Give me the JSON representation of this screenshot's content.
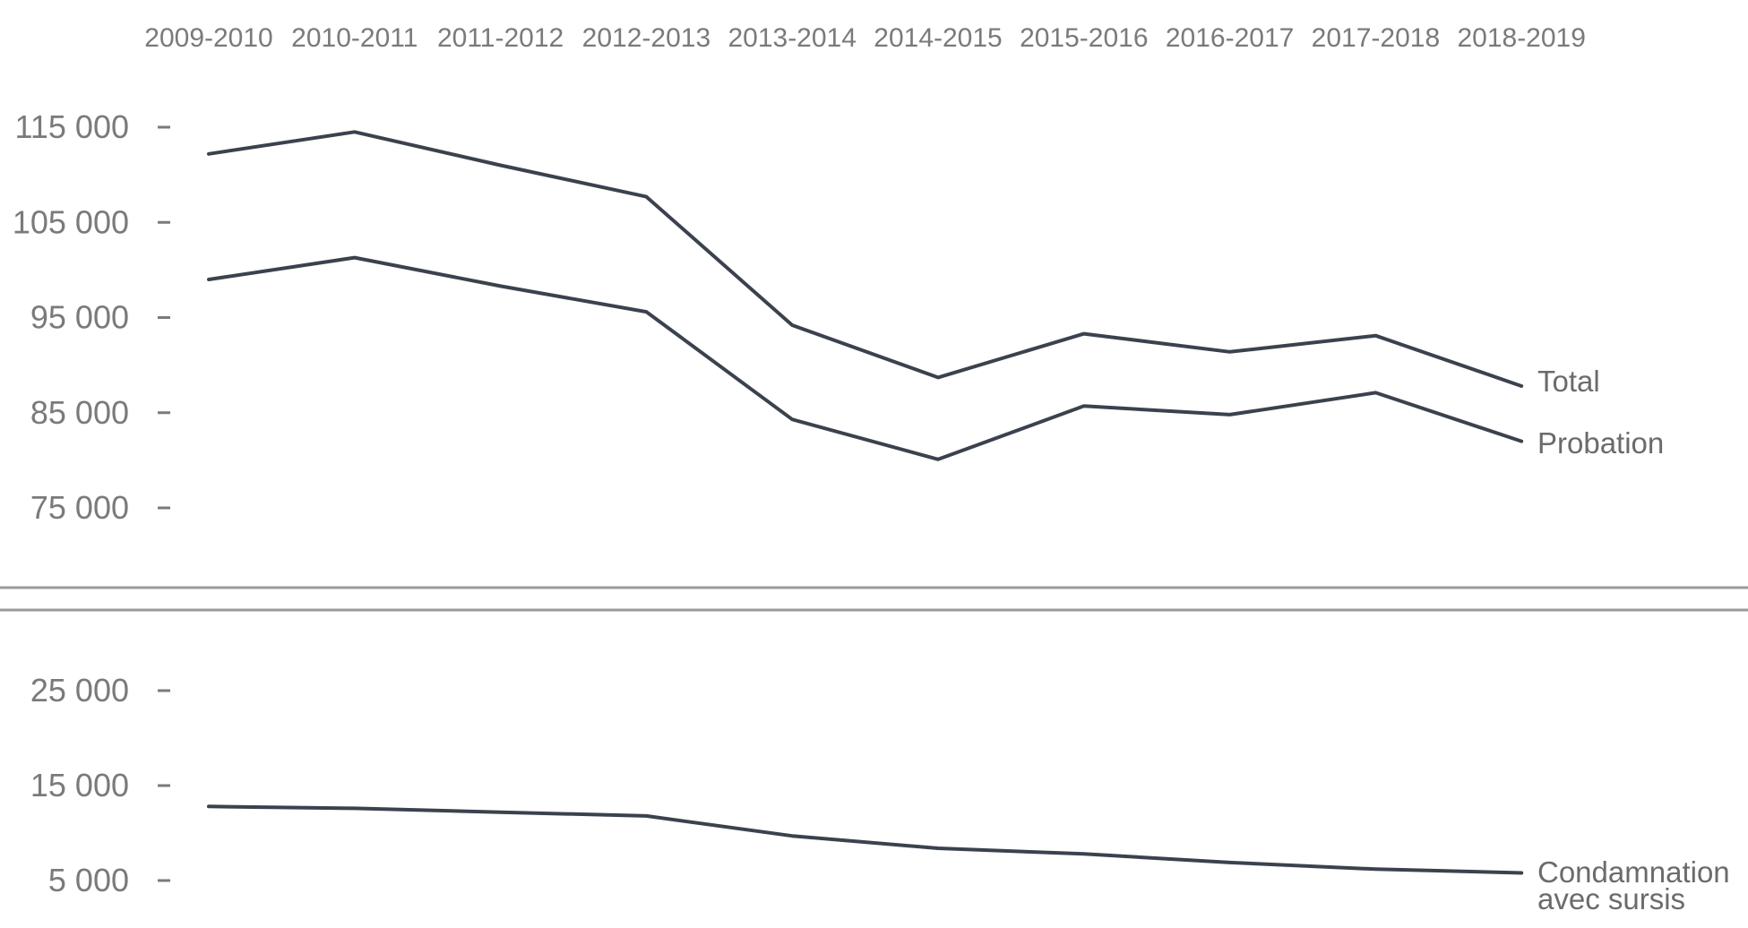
{
  "chart_data": {
    "type": "line",
    "title": "",
    "xlabel": "",
    "ylabel": "",
    "x": [
      "2009-2010",
      "2010-2011",
      "2011-2012",
      "2012-2013",
      "2013-2014",
      "2014-2015",
      "2015-2016",
      "2016-2017",
      "2017-2018",
      "2018-2019"
    ],
    "y_ticks_upper": [
      "115 000",
      "105 000",
      "95 000",
      "85 000",
      "75 000"
    ],
    "y_ticks_lower": [
      "25 000",
      "15 000",
      "5 000"
    ],
    "ylim_upper": [
      75000,
      115000
    ],
    "ylim_lower": [
      5000,
      25000
    ],
    "grid": false,
    "axis_break": true,
    "series": [
      {
        "name": "Total",
        "values": [
          112200,
          114500,
          111000,
          107700,
          94200,
          88700,
          93300,
          91400,
          93100,
          87800
        ]
      },
      {
        "name": "Probation",
        "values": [
          99000,
          101300,
          98300,
          95600,
          84300,
          80100,
          85700,
          84800,
          87100,
          82000
        ]
      },
      {
        "name": "Condamnation avec sursis",
        "values": [
          12800,
          12600,
          12200,
          11800,
          9700,
          8400,
          7800,
          6900,
          6200,
          5800
        ]
      }
    ],
    "labels": {
      "total": "Total",
      "probation": "Probation",
      "sursis_line1": "Condamnation",
      "sursis_line2": "avec sursis"
    }
  }
}
